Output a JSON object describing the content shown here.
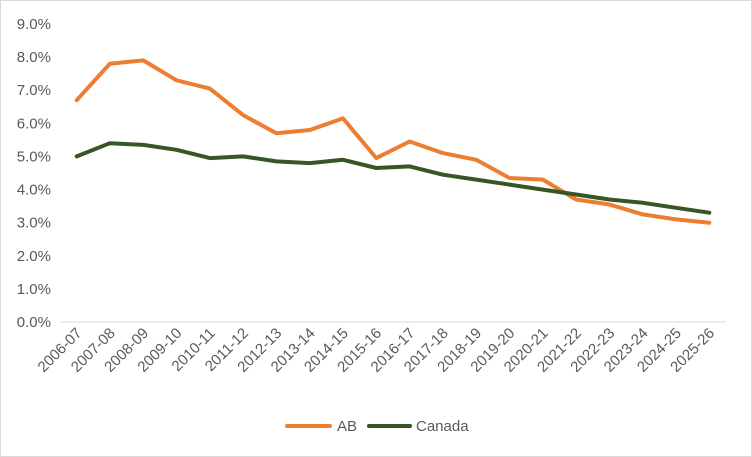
{
  "chart_data": {
    "type": "line",
    "title": "",
    "xlabel": "",
    "ylabel": "",
    "ylim": [
      0,
      9
    ],
    "y_tick_step": 1,
    "y_tick_format": "percent_1dp",
    "grid": false,
    "legend_position": "bottom",
    "categories": [
      "2006-07",
      "2007-08",
      "2008-09",
      "2009-10",
      "2010-11",
      "2011-12",
      "2012-13",
      "2013-14",
      "2014-15",
      "2015-16",
      "2016-17",
      "2017-18",
      "2018-19",
      "2019-20",
      "2020-21",
      "2021-22",
      "2022-23",
      "2023-24",
      "2024-25",
      "2025-26"
    ],
    "y_tick_labels": [
      "0.0%",
      "1.0%",
      "2.0%",
      "3.0%",
      "4.0%",
      "5.0%",
      "6.0%",
      "7.0%",
      "8.0%",
      "9.0%"
    ],
    "series": [
      {
        "name": "AB",
        "color": "#ed7d31",
        "values": [
          6.7,
          7.8,
          7.9,
          7.3,
          7.05,
          6.25,
          5.7,
          5.8,
          6.15,
          4.95,
          5.45,
          5.1,
          4.9,
          4.35,
          4.3,
          3.7,
          3.55,
          3.25,
          3.1,
          3.0
        ]
      },
      {
        "name": "Canada",
        "color": "#375623",
        "values": [
          5.0,
          5.4,
          5.35,
          5.2,
          4.95,
          5.0,
          4.85,
          4.8,
          4.9,
          4.65,
          4.7,
          4.45,
          4.3,
          4.15,
          4.0,
          3.85,
          3.7,
          3.6,
          3.45,
          3.3
        ]
      }
    ]
  }
}
